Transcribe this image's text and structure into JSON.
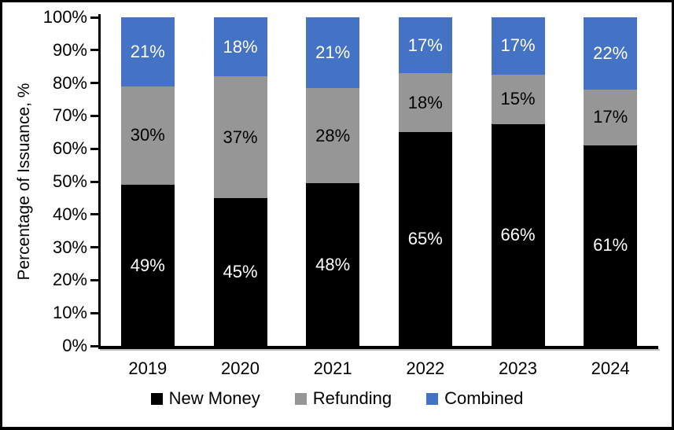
{
  "chart_data": {
    "type": "bar",
    "stacked": true,
    "orientation": "vertical",
    "categories": [
      "2019",
      "2020",
      "2021",
      "2022",
      "2023",
      "2024"
    ],
    "series": [
      {
        "name": "New Money",
        "color": "#000000",
        "label_color": "#ffffff",
        "values": [
          49,
          45,
          48,
          65,
          66,
          61
        ]
      },
      {
        "name": "Refunding",
        "color": "#969696",
        "label_color": "#000000",
        "values": [
          30,
          37,
          28,
          18,
          15,
          17
        ]
      },
      {
        "name": "Combined",
        "color": "#4472C4",
        "label_color": "#ffffff",
        "values": [
          21,
          18,
          21,
          17,
          17,
          22
        ]
      }
    ],
    "value_suffix": "%",
    "ylabel": "Percentage of Issuance, %",
    "ylim": [
      0,
      100
    ],
    "ytick_step": 10,
    "ytick_labels": [
      "0%",
      "10%",
      "20%",
      "30%",
      "40%",
      "50%",
      "60%",
      "70%",
      "80%",
      "90%",
      "100%"
    ],
    "grid": "off",
    "legend_position": "bottom",
    "axis_color": "#000000",
    "background_color": "#ffffff",
    "frame_color": "#000000"
  }
}
